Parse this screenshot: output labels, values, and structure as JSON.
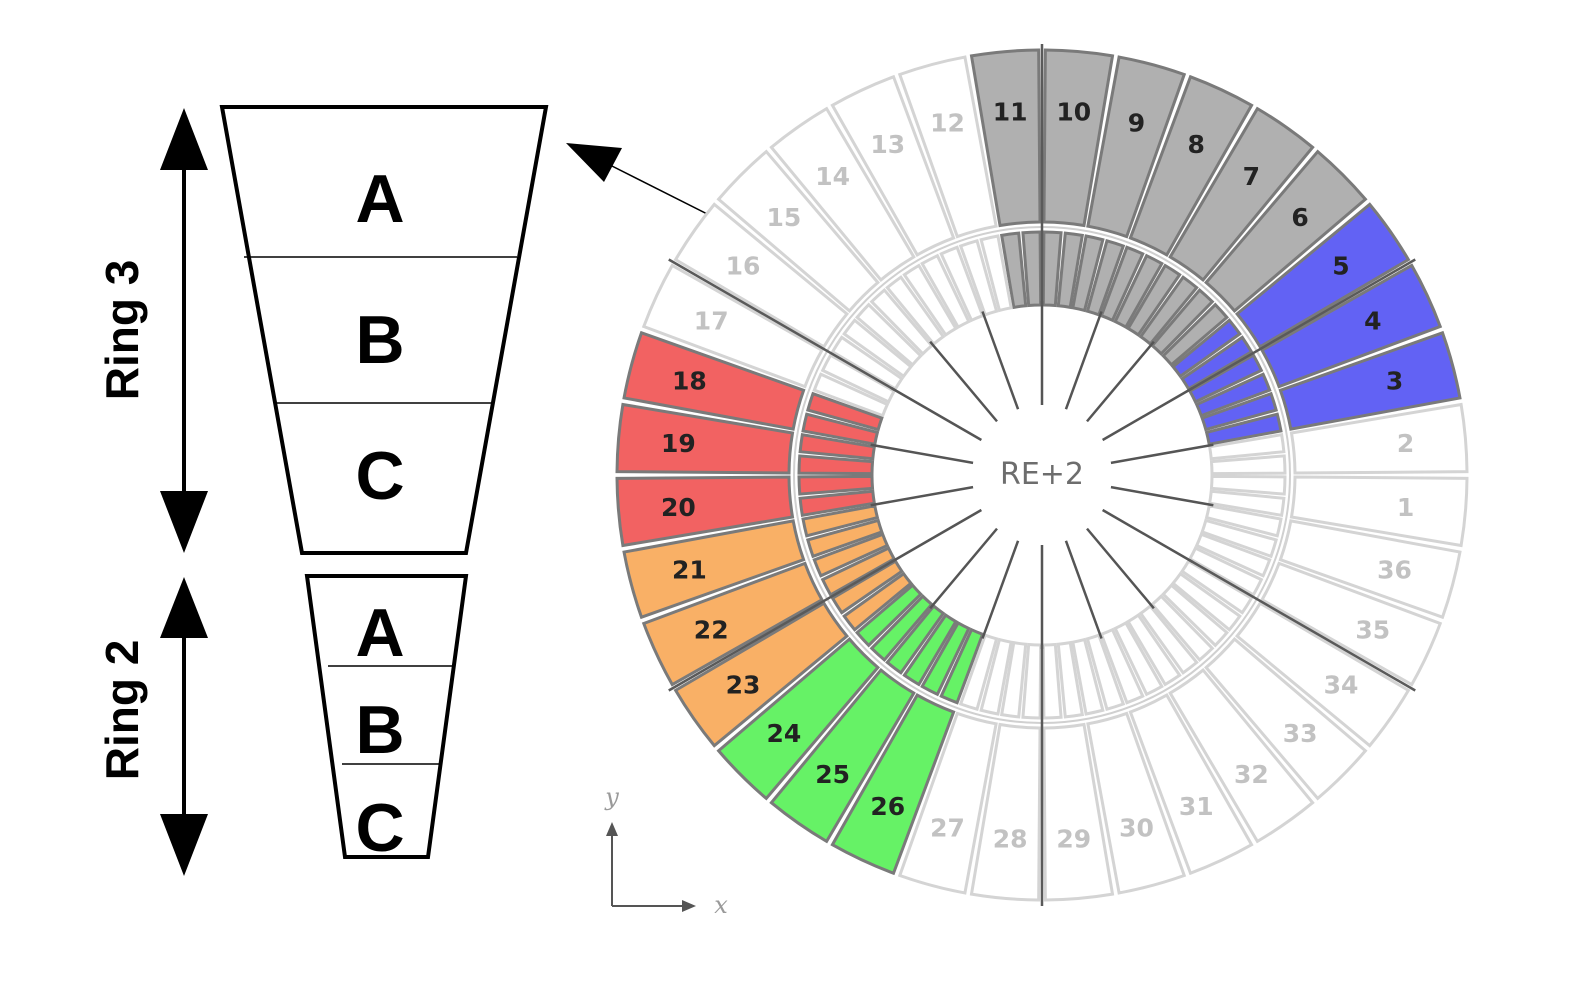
{
  "ring3": {
    "label": "Ring 3",
    "parts": [
      "A",
      "B",
      "C"
    ]
  },
  "ring2": {
    "label": "Ring 2",
    "parts": [
      "A",
      "B",
      "C"
    ]
  },
  "wheel": {
    "label": "RE+2",
    "x_axis": "x",
    "y_axis": "y"
  },
  "sectors": [
    {
      "num": "1",
      "group": "none"
    },
    {
      "num": "2",
      "group": "none"
    },
    {
      "num": "3",
      "group": "blue"
    },
    {
      "num": "4",
      "group": "blue"
    },
    {
      "num": "5",
      "group": "blue"
    },
    {
      "num": "6",
      "group": "gray"
    },
    {
      "num": "7",
      "group": "gray"
    },
    {
      "num": "8",
      "group": "gray"
    },
    {
      "num": "9",
      "group": "gray"
    },
    {
      "num": "10",
      "group": "gray"
    },
    {
      "num": "11",
      "group": "gray"
    },
    {
      "num": "12",
      "group": "none"
    },
    {
      "num": "13",
      "group": "none"
    },
    {
      "num": "14",
      "group": "none"
    },
    {
      "num": "15",
      "group": "none"
    },
    {
      "num": "16",
      "group": "none"
    },
    {
      "num": "17",
      "group": "none"
    },
    {
      "num": "18",
      "group": "red"
    },
    {
      "num": "19",
      "group": "red"
    },
    {
      "num": "20",
      "group": "red"
    },
    {
      "num": "21",
      "group": "orange"
    },
    {
      "num": "22",
      "group": "orange"
    },
    {
      "num": "23",
      "group": "orange"
    },
    {
      "num": "24",
      "group": "green"
    },
    {
      "num": "25",
      "group": "green"
    },
    {
      "num": "26",
      "group": "green"
    },
    {
      "num": "27",
      "group": "none"
    },
    {
      "num": "28",
      "group": "none"
    },
    {
      "num": "29",
      "group": "none"
    },
    {
      "num": "30",
      "group": "none"
    },
    {
      "num": "31",
      "group": "none"
    },
    {
      "num": "32",
      "group": "none"
    },
    {
      "num": "33",
      "group": "none"
    },
    {
      "num": "34",
      "group": "none"
    },
    {
      "num": "35",
      "group": "none"
    },
    {
      "num": "36",
      "group": "none"
    }
  ],
  "colors": {
    "none": "#ffffff",
    "blue": "#6262f4",
    "gray": "#b0b0b0",
    "red": "#f26262",
    "orange": "#f9b066",
    "green": "#66f266",
    "outline_none": "#d4d4d4",
    "outline_colored": "#7a7a7a"
  }
}
